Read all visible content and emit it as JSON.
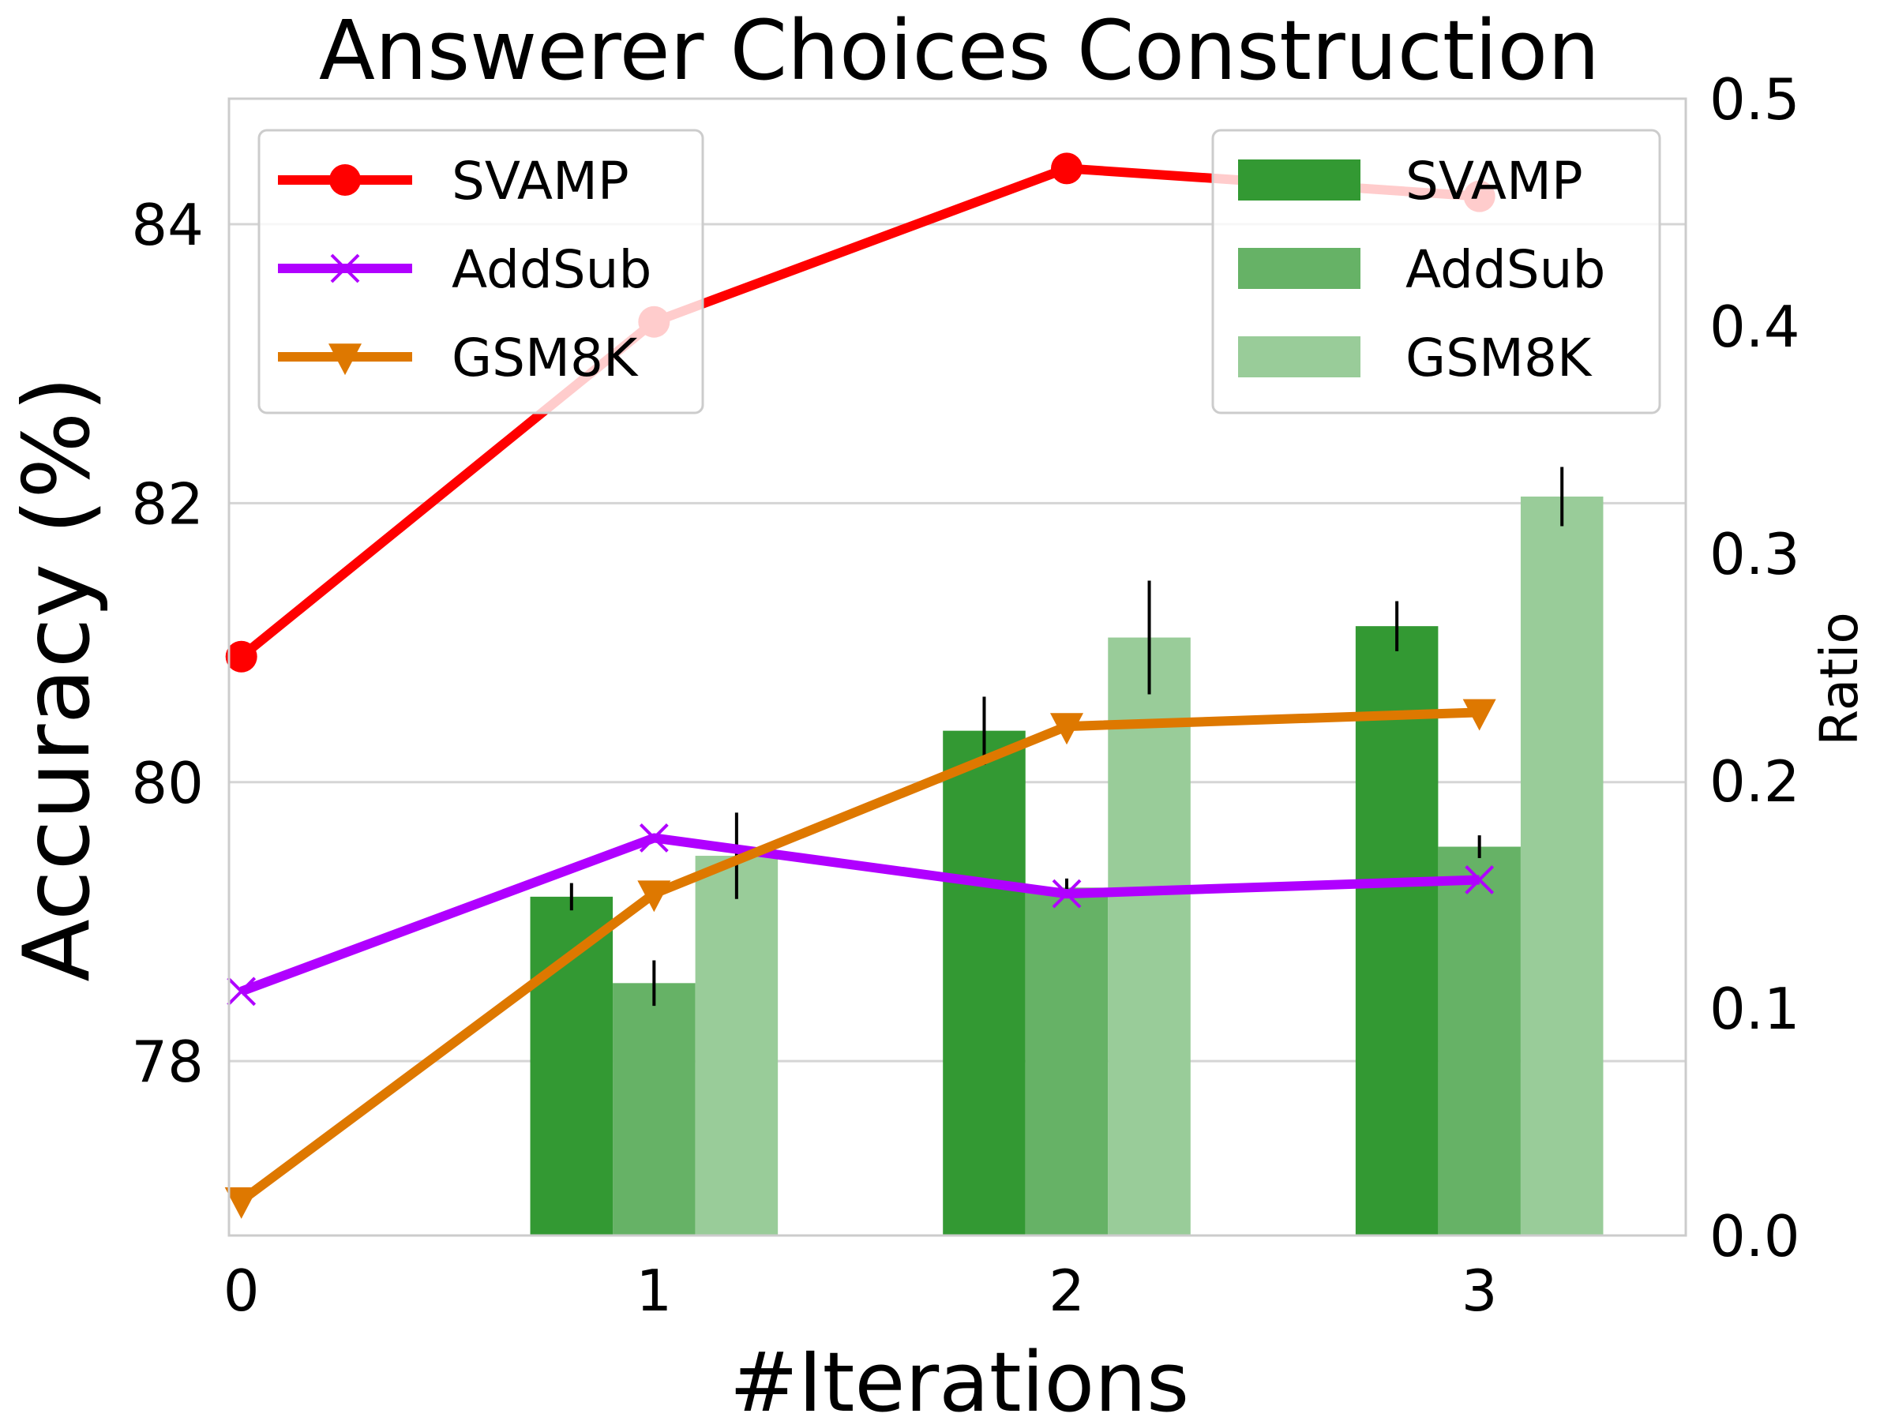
{
  "chart_data": {
    "type": "bar+line",
    "title": "Answerer Choices Construction",
    "xlabel": "#Iterations",
    "ylabel_left": "Accuracy (%)",
    "ylabel_right": "Ratio",
    "x_ticks": [
      "0",
      "1",
      "2",
      "3"
    ],
    "y_left_ticks": [
      "78",
      "80",
      "82",
      "84"
    ],
    "y_right_ticks": [
      "0.0",
      "0.1",
      "0.2",
      "0.3",
      "0.4",
      "0.5"
    ],
    "ylim_left": [
      76.75,
      84.9
    ],
    "ylim_right": [
      0.0,
      0.5
    ],
    "grid": true,
    "line_series": [
      {
        "name": "SVAMP",
        "x": [
          0,
          1,
          2,
          3
        ],
        "values": [
          80.9,
          83.3,
          84.4,
          84.2
        ],
        "color": "#ff0000",
        "marker": "circle"
      },
      {
        "name": "AddSub",
        "x": [
          0,
          1,
          2,
          3
        ],
        "values": [
          78.5,
          79.6,
          79.2,
          79.3
        ],
        "color": "#b000ff",
        "marker": "x"
      },
      {
        "name": "GSM8K",
        "x": [
          0,
          1,
          2,
          3
        ],
        "values": [
          77.0,
          79.2,
          80.4,
          80.5
        ],
        "color": "#de7800",
        "marker": "triangle-down"
      }
    ],
    "bar_series": [
      {
        "name": "SVAMP",
        "x": [
          1,
          2,
          3
        ],
        "values": [
          0.149,
          0.222,
          0.268
        ],
        "errors": [
          0.006,
          0.015,
          0.011
        ],
        "color": "#339933"
      },
      {
        "name": "AddSub",
        "x": [
          1,
          2,
          3
        ],
        "values": [
          0.111,
          0.153,
          0.171
        ],
        "errors": [
          0.01,
          0.004,
          0.005
        ],
        "color": "#66b266"
      },
      {
        "name": "GSM8K",
        "x": [
          1,
          2,
          3
        ],
        "values": [
          0.167,
          0.263,
          0.325
        ],
        "errors": [
          0.019,
          0.025,
          0.013
        ],
        "color": "#99cc99"
      }
    ],
    "legend_left_position": "upper-left",
    "legend_right_position": "upper-right"
  }
}
